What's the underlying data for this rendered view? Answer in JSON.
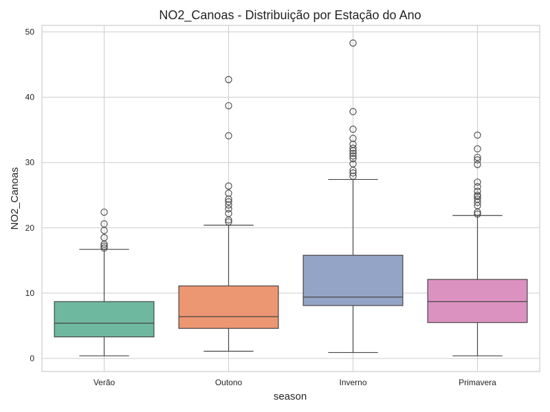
{
  "chart_data": {
    "type": "box",
    "title": "NO2_Canoas - Distribuição por Estação do Ano",
    "xlabel": "season",
    "ylabel": "NO2_Canoas",
    "ylim": [
      -2,
      51
    ],
    "yticks": [
      0,
      10,
      20,
      30,
      40,
      50
    ],
    "grid": true,
    "categories": [
      "Verão",
      "Outono",
      "Inverno",
      "Primavera"
    ],
    "boxes": [
      {
        "name": "Verão",
        "color": "#6fb8a0",
        "whisker_low": 0.4,
        "q1": 3.3,
        "median": 5.4,
        "q3": 8.7,
        "whisker_high": 16.7,
        "outliers": [
          16.9,
          17.2,
          17.5,
          18.5,
          19.6,
          20.6,
          22.4
        ]
      },
      {
        "name": "Outono",
        "color": "#ec9672",
        "whisker_low": 1.1,
        "q1": 4.6,
        "median": 6.4,
        "q3": 11.1,
        "whisker_high": 20.4,
        "outliers": [
          20.9,
          21.2,
          22.2,
          22.9,
          23.5,
          24.0,
          24.4,
          25.3,
          26.4,
          34.1,
          38.7,
          42.7
        ]
      },
      {
        "name": "Inverno",
        "color": "#94a4c6",
        "whisker_low": 0.9,
        "q1": 8.1,
        "median": 9.4,
        "q3": 15.8,
        "whisker_high": 27.4,
        "outliers": [
          27.9,
          28.4,
          28.8,
          29.8,
          30.6,
          31.0,
          31.4,
          31.8,
          32.2,
          32.8,
          33.7,
          35.1,
          37.8,
          48.3
        ]
      },
      {
        "name": "Primavera",
        "color": "#dc92c0",
        "whisker_low": 0.4,
        "q1": 5.5,
        "median": 8.7,
        "q3": 12.1,
        "whisker_high": 21.9,
        "outliers": [
          22.1,
          22.4,
          23.4,
          23.9,
          24.4,
          24.8,
          25.0,
          25.6,
          26.3,
          27.0,
          29.7,
          30.4,
          30.8,
          32.1,
          34.2
        ]
      }
    ]
  }
}
